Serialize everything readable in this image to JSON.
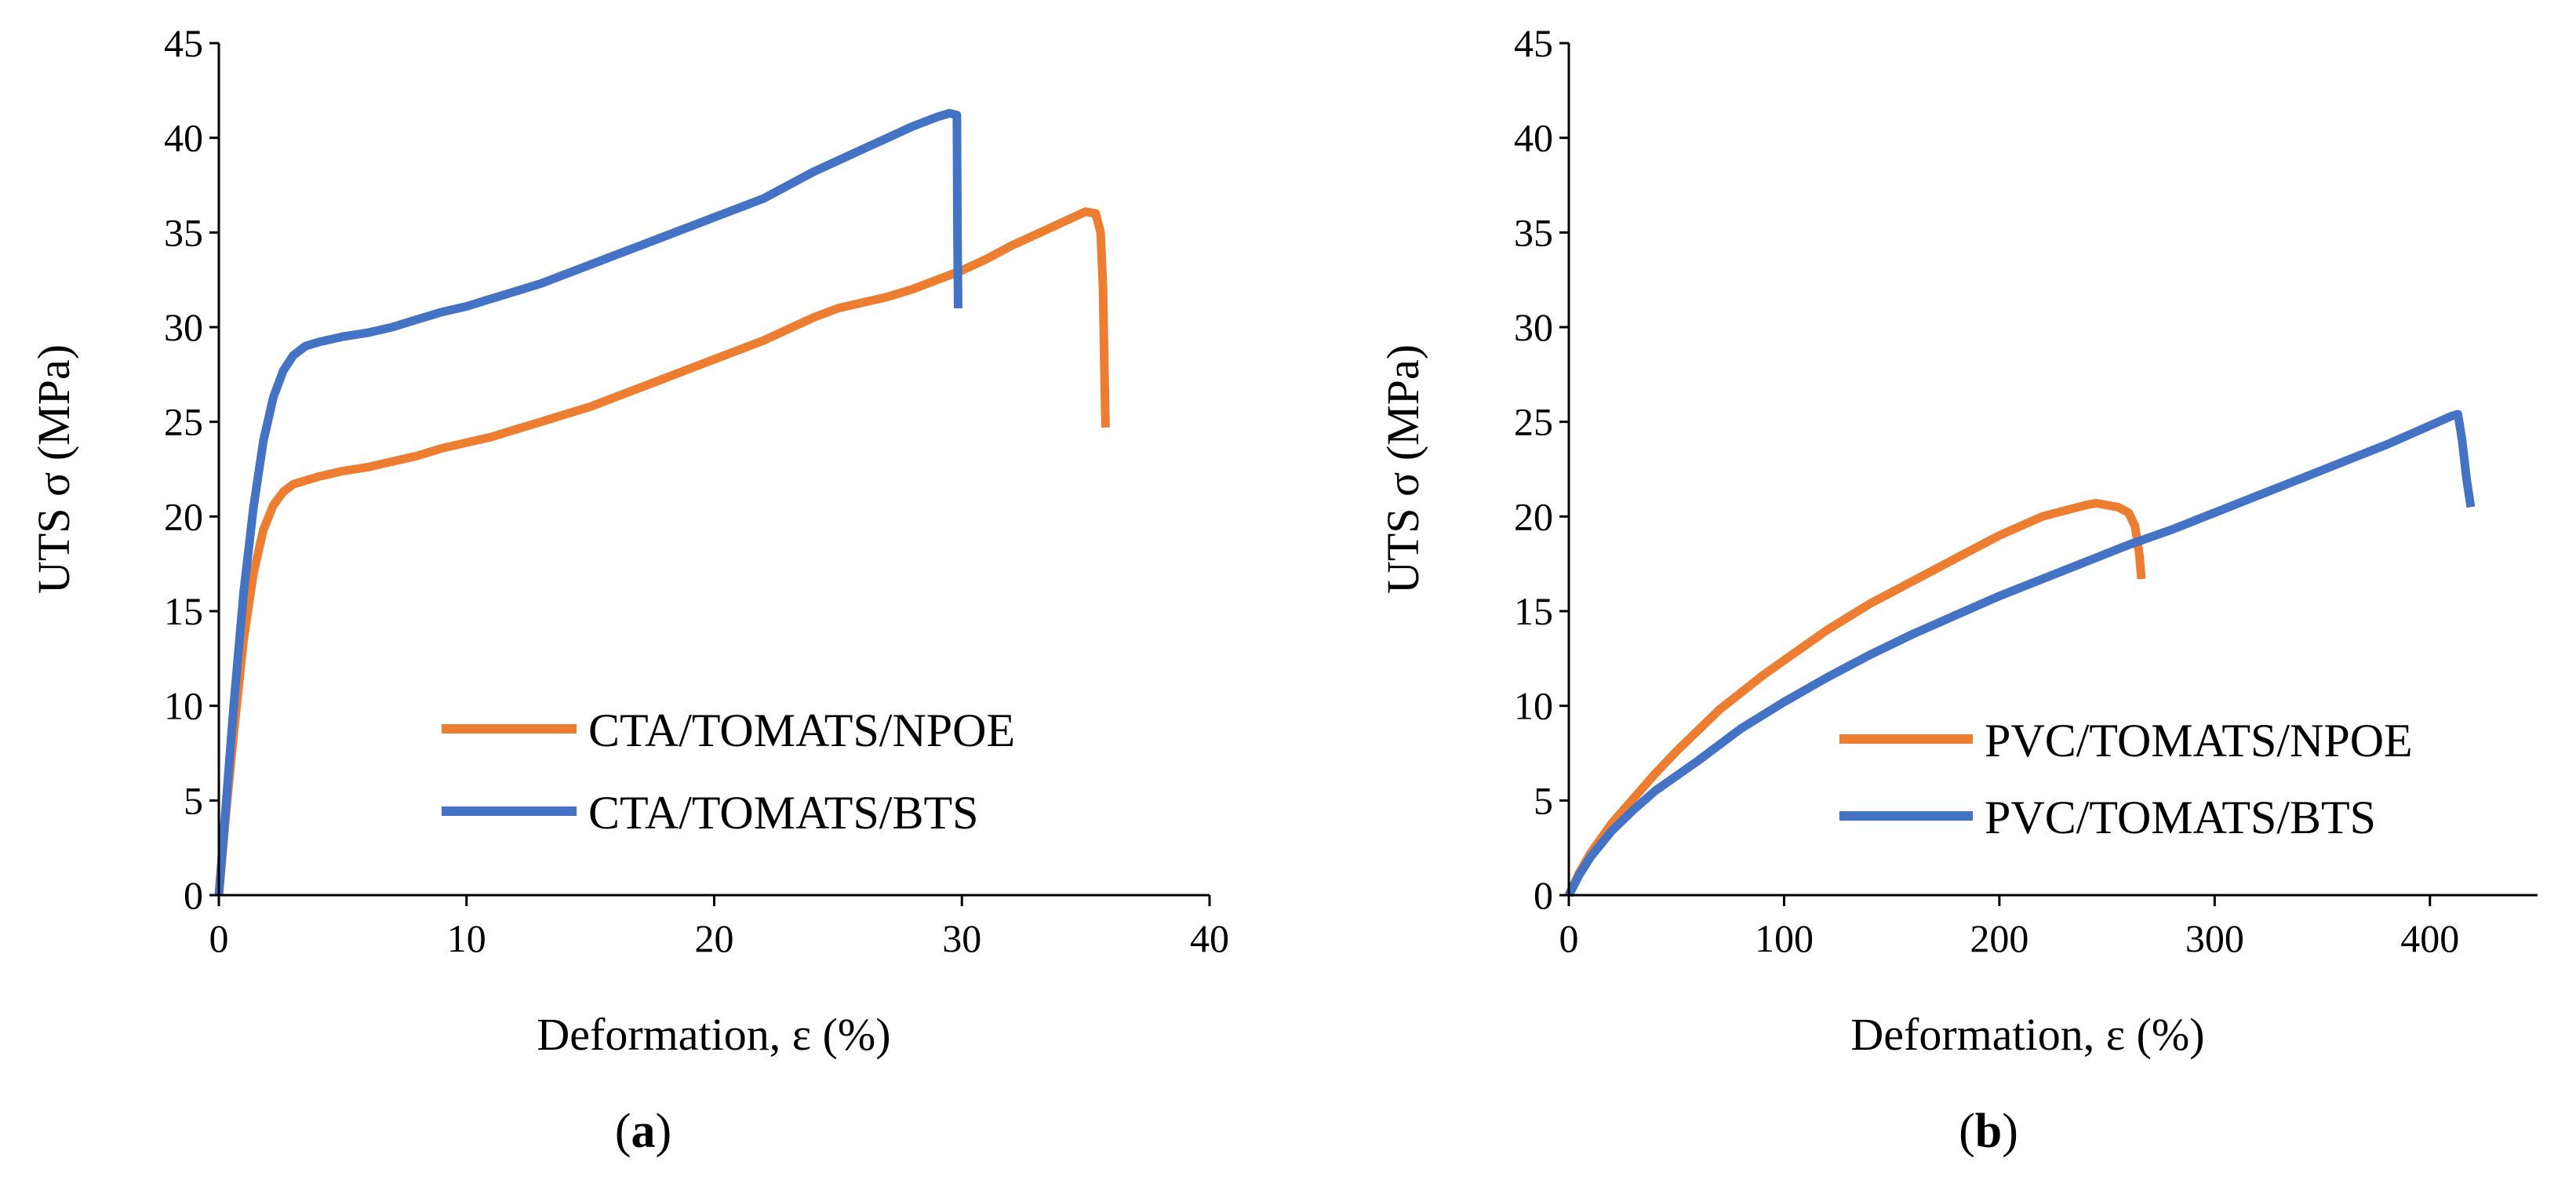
{
  "chart_data": [
    {
      "type": "line",
      "panel_label_open": "(",
      "panel_label_letter": "a",
      "panel_label_close": ")",
      "title": "",
      "xlabel": "Deformation, ε (%)",
      "ylabel": "UTS σ (MPa)",
      "xlim": [
        0,
        40
      ],
      "ylim": [
        0,
        45
      ],
      "xticks": [
        0,
        10,
        20,
        30,
        40
      ],
      "yticks": [
        0,
        5,
        10,
        15,
        20,
        25,
        30,
        35,
        40,
        45
      ],
      "grid": false,
      "legend_position": "bottom-right",
      "series": [
        {
          "name": "CTA/TOMATS/NPOE",
          "color": "#ED7D31",
          "x": [
            0,
            0.3,
            0.6,
            1.0,
            1.4,
            1.8,
            2.2,
            2.6,
            3.0,
            3.5,
            4.0,
            5.0,
            6.0,
            7.0,
            8.0,
            9.0,
            10.0,
            11.0,
            12.0,
            13.0,
            14.0,
            15.0,
            16.0,
            17.0,
            18.0,
            19.0,
            20.0,
            21.0,
            22.0,
            23.0,
            24.0,
            25.0,
            26.0,
            27.0,
            28.0,
            29.0,
            30.0,
            31.0,
            32.0,
            33.0,
            34.0,
            35.0,
            35.4,
            35.6,
            35.7,
            35.75,
            35.8
          ],
          "y": [
            0,
            4.5,
            8.5,
            13.5,
            17.0,
            19.3,
            20.6,
            21.3,
            21.7,
            21.9,
            22.1,
            22.4,
            22.6,
            22.9,
            23.2,
            23.6,
            23.9,
            24.2,
            24.6,
            25.0,
            25.4,
            25.8,
            26.3,
            26.8,
            27.3,
            27.8,
            28.3,
            28.8,
            29.3,
            29.9,
            30.5,
            31.0,
            31.3,
            31.6,
            32.0,
            32.5,
            33.0,
            33.6,
            34.3,
            34.9,
            35.5,
            36.1,
            36.0,
            35.0,
            32.0,
            28.0,
            24.7
          ]
        },
        {
          "name": "CTA/TOMATS/BTS",
          "color": "#4472C4",
          "x": [
            0,
            0.3,
            0.6,
            1.0,
            1.4,
            1.8,
            2.2,
            2.6,
            3.0,
            3.5,
            4.0,
            5.0,
            6.0,
            7.0,
            8.0,
            9.0,
            10.0,
            11.0,
            12.0,
            13.0,
            14.0,
            15.0,
            16.0,
            17.0,
            18.0,
            19.0,
            20.0,
            21.0,
            22.0,
            23.0,
            24.0,
            25.0,
            26.0,
            27.0,
            28.0,
            29.0,
            29.5,
            29.8,
            29.82,
            29.85
          ],
          "y": [
            0,
            5.0,
            10.0,
            16.0,
            20.5,
            24.0,
            26.3,
            27.7,
            28.5,
            29.0,
            29.2,
            29.5,
            29.7,
            30.0,
            30.4,
            30.8,
            31.1,
            31.5,
            31.9,
            32.3,
            32.8,
            33.3,
            33.8,
            34.3,
            34.8,
            35.3,
            35.8,
            36.3,
            36.8,
            37.5,
            38.2,
            38.8,
            39.4,
            40.0,
            40.6,
            41.1,
            41.3,
            41.2,
            35.0,
            31.0
          ]
        }
      ]
    },
    {
      "type": "line",
      "panel_label_open": "(",
      "panel_label_letter": "b",
      "panel_label_close": ")",
      "title": "",
      "xlabel": "Deformation, ε (%)",
      "ylabel": "UTS σ (MPa)",
      "xlim": [
        0,
        450
      ],
      "ylim": [
        0,
        45
      ],
      "xticks": [
        0,
        100,
        200,
        300,
        400
      ],
      "yticks": [
        0,
        5,
        10,
        15,
        20,
        25,
        30,
        35,
        40,
        45
      ],
      "grid": false,
      "legend_position": "bottom-right",
      "series": [
        {
          "name": "PVC/TOMATS/NPOE",
          "color": "#ED7D31",
          "x": [
            0,
            5,
            10,
            20,
            30,
            40,
            50,
            60,
            70,
            80,
            90,
            100,
            110,
            120,
            130,
            140,
            150,
            160,
            170,
            180,
            190,
            200,
            210,
            220,
            230,
            240,
            245,
            250,
            255,
            260,
            263,
            265,
            266
          ],
          "y": [
            0,
            1.2,
            2.2,
            3.8,
            5.1,
            6.4,
            7.6,
            8.7,
            9.8,
            10.7,
            11.6,
            12.4,
            13.2,
            14.0,
            14.7,
            15.4,
            16.0,
            16.6,
            17.2,
            17.8,
            18.4,
            19.0,
            19.5,
            20.0,
            20.3,
            20.6,
            20.7,
            20.6,
            20.5,
            20.2,
            19.5,
            18.0,
            16.7
          ]
        },
        {
          "name": "PVC/TOMATS/BTS",
          "color": "#4472C4",
          "x": [
            0,
            5,
            10,
            20,
            30,
            40,
            50,
            60,
            80,
            100,
            120,
            140,
            160,
            180,
            200,
            220,
            240,
            260,
            280,
            300,
            320,
            340,
            360,
            380,
            400,
            410,
            413,
            415,
            417,
            419
          ],
          "y": [
            0,
            1.1,
            2.0,
            3.4,
            4.5,
            5.5,
            6.3,
            7.1,
            8.8,
            10.2,
            11.5,
            12.7,
            13.8,
            14.8,
            15.8,
            16.7,
            17.6,
            18.5,
            19.3,
            20.2,
            21.1,
            22.0,
            22.9,
            23.8,
            24.8,
            25.3,
            25.4,
            24.0,
            22.0,
            20.5
          ]
        }
      ]
    }
  ]
}
